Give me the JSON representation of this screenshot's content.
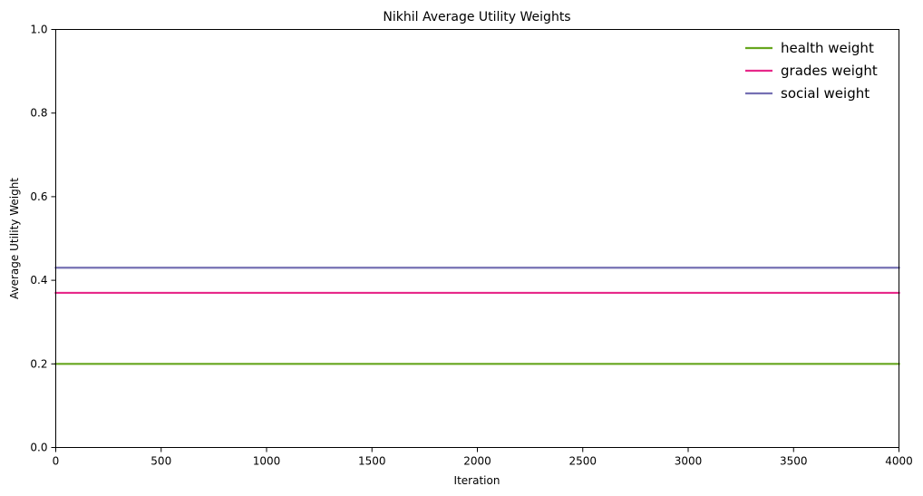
{
  "chart_data": {
    "type": "line",
    "title": "Nikhil Average Utility Weights",
    "xlabel": "Iteration",
    "ylabel": "Average Utility Weight",
    "xlim": [
      0,
      4000
    ],
    "ylim": [
      0,
      1
    ],
    "x_ticks": [
      0,
      500,
      1000,
      1500,
      2000,
      2500,
      3000,
      3500,
      4000
    ],
    "x_tick_labels": [
      "0",
      "500",
      "1000",
      "1500",
      "2000",
      "2500",
      "3000",
      "3500",
      "4000"
    ],
    "y_ticks": [
      0,
      0.2,
      0.4,
      0.6,
      0.8,
      1.0
    ],
    "y_tick_labels": [
      "0.0",
      "0.2",
      "0.4",
      "0.6",
      "0.8",
      "1.0"
    ],
    "grid": false,
    "legend_position": "top-right",
    "series": [
      {
        "name": "health weight",
        "color": "#66a61e",
        "x": [
          0,
          4000
        ],
        "values": [
          0.2,
          0.2
        ]
      },
      {
        "name": "grades weight",
        "color": "#e7298a",
        "x": [
          0,
          4000
        ],
        "values": [
          0.37,
          0.37
        ]
      },
      {
        "name": "social weight",
        "color": "#7570b3",
        "x": [
          0,
          4000
        ],
        "values": [
          0.43,
          0.43
        ]
      }
    ]
  }
}
